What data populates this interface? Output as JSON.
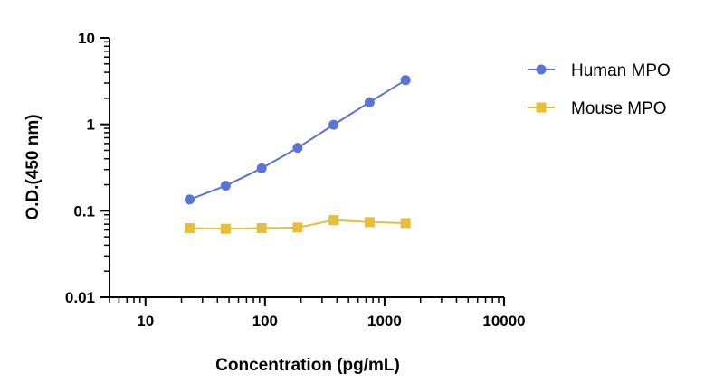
{
  "chart_data": {
    "type": "line",
    "title": "",
    "xlabel": "Concentration (pg/mL)",
    "ylabel": "O.D.(450 nm)",
    "xscale": "log",
    "yscale": "log",
    "xlim": [
      5,
      10000
    ],
    "ylim": [
      0.01,
      10
    ],
    "xticks": [
      10,
      100,
      1000,
      10000
    ],
    "xtick_labels": [
      "10",
      "100",
      "1000",
      "10000"
    ],
    "yticks": [
      0.01,
      0.1,
      1,
      10
    ],
    "ytick_labels": [
      "0.01",
      "0.1",
      "1",
      "10"
    ],
    "grid": false,
    "legend_position": "top-right",
    "series": [
      {
        "name": "Human MPO",
        "color": "#5a73d6",
        "marker": "circle",
        "x": [
          23.4,
          46.9,
          93.8,
          187.5,
          375,
          750,
          1500
        ],
        "y": [
          0.135,
          0.195,
          0.31,
          0.535,
          0.99,
          1.8,
          3.25
        ]
      },
      {
        "name": "Mouse MPO",
        "color": "#e8be38",
        "marker": "square",
        "x": [
          23.4,
          46.9,
          93.8,
          187.5,
          375,
          750,
          1500
        ],
        "y": [
          0.063,
          0.062,
          0.063,
          0.064,
          0.078,
          0.074,
          0.072
        ]
      }
    ]
  }
}
